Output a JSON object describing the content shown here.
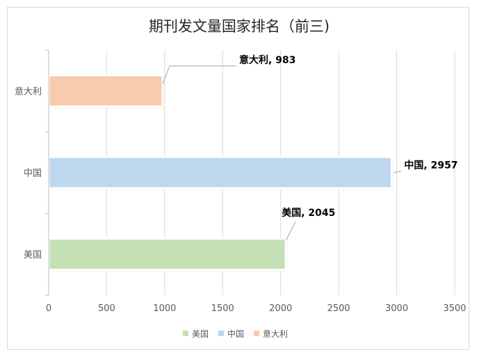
{
  "chart_data": {
    "type": "bar",
    "orientation": "horizontal",
    "title": "期刊发文量国家排名（前三)",
    "categories": [
      "美国",
      "中国",
      "意大利"
    ],
    "values": [
      2045,
      2957,
      983
    ],
    "colors": [
      "#c5e0b4",
      "#bdd7ee",
      "#f8cbad"
    ],
    "data_labels": [
      "美国, 2045",
      "中国, 2957",
      "意大利, 983"
    ],
    "xlim": [
      0,
      3500
    ],
    "xticks": [
      0,
      500,
      1000,
      1500,
      2000,
      2500,
      3000,
      3500
    ],
    "grid": true,
    "legend": {
      "position": "bottom",
      "entries": [
        "美国",
        "中国",
        "意大利"
      ]
    }
  }
}
